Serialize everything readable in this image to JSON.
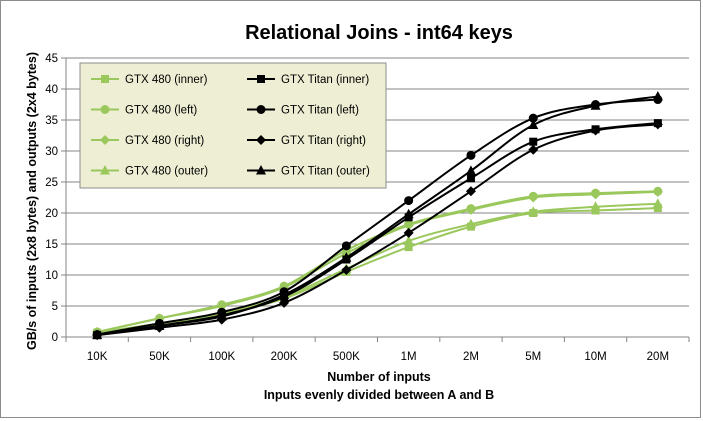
{
  "chart_data": {
    "type": "line",
    "title": "Relational Joins - int64 keys",
    "xlabel": "Number of inputs",
    "xlabel2": "Inputs evenly divided between A and B",
    "ylabel": "GB/s of inputs (2x8 bytes) and outputs (2x4 bytes)",
    "categories": [
      "10K",
      "50K",
      "100K",
      "200K",
      "500K",
      "1M",
      "2M",
      "5M",
      "10M",
      "20M"
    ],
    "ylim": [
      0,
      45
    ],
    "yticks": [
      0,
      5,
      10,
      15,
      20,
      25,
      30,
      35,
      40,
      45
    ],
    "grid": true,
    "legend": "top-left inside plot",
    "series": [
      {
        "name": "GTX 480 (inner)",
        "marker": "square",
        "color": "#9bc85c",
        "values": [
          0.7,
          2.0,
          3.7,
          6.2,
          10.5,
          14.5,
          17.8,
          20.0,
          20.4,
          20.8
        ]
      },
      {
        "name": "GTX 480 (left)",
        "marker": "circle",
        "color": "#9bc85c",
        "values": [
          0.8,
          3.0,
          5.2,
          8.2,
          14.0,
          18.2,
          20.7,
          22.7,
          23.2,
          23.5
        ]
      },
      {
        "name": "GTX 480 (right)",
        "marker": "diamond",
        "color": "#9bc85c",
        "values": [
          0.8,
          3.0,
          5.0,
          8.0,
          13.5,
          18.0,
          20.5,
          22.5,
          23.0,
          23.4
        ]
      },
      {
        "name": "GTX 480 (outer)",
        "marker": "triangle",
        "color": "#9bc85c",
        "values": [
          0.7,
          2.2,
          3.8,
          6.5,
          11.0,
          15.5,
          18.2,
          20.2,
          21.0,
          21.5
        ]
      },
      {
        "name": "GTX Titan (inner)",
        "marker": "square",
        "color": "#000000",
        "values": [
          0.3,
          1.8,
          3.5,
          6.5,
          12.5,
          19.3,
          25.6,
          31.5,
          33.5,
          34.5
        ]
      },
      {
        "name": "GTX Titan (left)",
        "marker": "circle",
        "color": "#000000",
        "values": [
          0.4,
          2.2,
          4.0,
          7.3,
          14.7,
          22.0,
          29.3,
          35.3,
          37.5,
          38.3
        ]
      },
      {
        "name": "GTX Titan (right)",
        "marker": "diamond",
        "color": "#000000",
        "values": [
          0.3,
          1.5,
          2.8,
          5.5,
          10.8,
          16.8,
          23.5,
          30.2,
          33.3,
          34.3
        ]
      },
      {
        "name": "GTX Titan (outer)",
        "marker": "triangle",
        "color": "#000000",
        "values": [
          0.3,
          1.8,
          3.3,
          6.8,
          12.8,
          19.8,
          26.8,
          34.2,
          37.3,
          38.8
        ]
      }
    ]
  }
}
